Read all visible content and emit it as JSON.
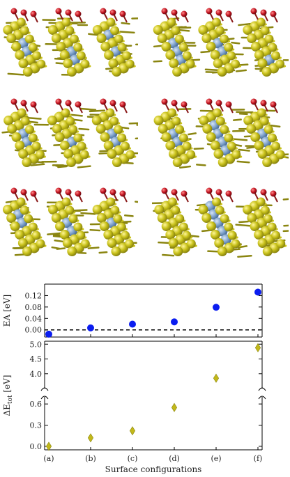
{
  "colors": {
    "gold": "#c9c21b",
    "gold_dark": "#8a8510",
    "oxygen": "#c1121f",
    "dopant": "#7b9fc9",
    "ea_marker": "#0b1df0",
    "de_marker": "#c2b81a",
    "dashed_line": "#000000"
  },
  "structure_panels": [
    {
      "label": "(a)",
      "pattern": "a"
    },
    {
      "label": "(b)",
      "pattern": "b"
    },
    {
      "label": "(c)",
      "pattern": "c"
    },
    {
      "label": "(d)",
      "pattern": "d"
    },
    {
      "label": "(e)",
      "pattern": "e"
    },
    {
      "label": "(f)",
      "pattern": "f"
    }
  ],
  "chart_data": [
    {
      "type": "scatter",
      "title": "",
      "ylabel": "EA [eV]",
      "categories": [
        "(a)",
        "(b)",
        "(c)",
        "(d)",
        "(e)",
        "(f)"
      ],
      "values": [
        -0.015,
        0.007,
        0.02,
        0.028,
        0.079,
        0.132
      ],
      "ylim": [
        -0.025,
        0.16
      ],
      "yticks": [
        0.0,
        0.04,
        0.08,
        0.12
      ],
      "ytick_labels": [
        "0.00",
        "0.04",
        "0.08",
        "0.12"
      ],
      "reference_line": 0.0,
      "marker": "circle"
    },
    {
      "type": "scatter",
      "title": "",
      "ylabel": "ΔE",
      "ylabel_sub": "tot",
      "ylabel_unit": " [eV]",
      "xlabel": "Surface configurations",
      "categories": [
        "(a)",
        "(b)",
        "(c)",
        "(d)",
        "(e)",
        "(f)"
      ],
      "values": [
        0.0,
        0.12,
        0.22,
        0.55,
        3.85,
        4.88
      ],
      "broken_axis": true,
      "upper_ylim": [
        3.5,
        5.1
      ],
      "upper_yticks": [
        4.0,
        4.5,
        5.0
      ],
      "upper_ytick_labels": [
        "4.0",
        "4.5",
        "5.0"
      ],
      "lower_ylim": [
        -0.05,
        0.7
      ],
      "lower_yticks": [
        0.0,
        0.3,
        0.6
      ],
      "lower_ytick_labels": [
        "0.0",
        "0.3",
        "0.6"
      ],
      "marker": "diamond"
    }
  ]
}
